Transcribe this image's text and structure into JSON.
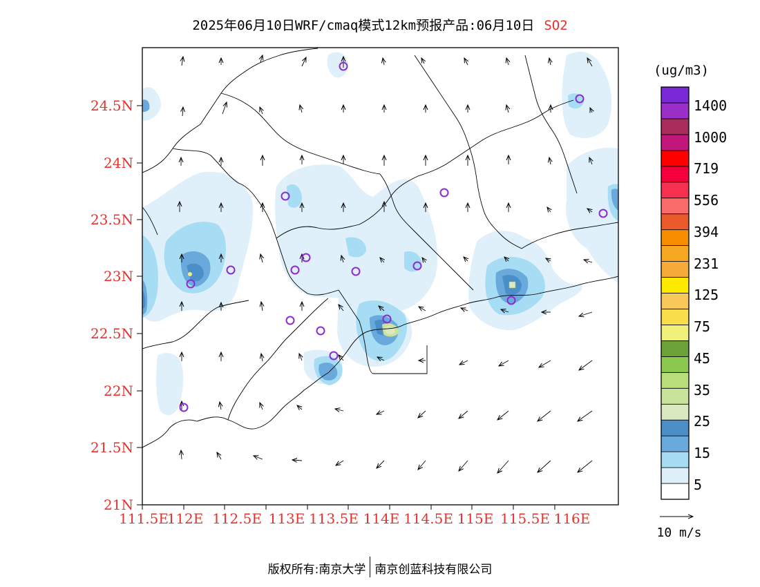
{
  "title": {
    "main": "2025年06月10日WRF/cmaq模式12km预报产品:06月10日",
    "pollutant": "SO2",
    "pollutant_color": "#e5322d"
  },
  "map": {
    "lat_ticks": [
      "24.5N",
      "24N",
      "23.5N",
      "23N",
      "22.5N",
      "22N",
      "21.5N",
      "21N"
    ],
    "lon_ticks": [
      "111.5E",
      "112E",
      "112.5E",
      "113E",
      "113.5E",
      "114E",
      "114.5E",
      "115E",
      "115.5E",
      "116E"
    ],
    "tick_color": "#e5322d"
  },
  "legend": {
    "unit": "(ug/m3)",
    "labels": [
      "1400",
      "1000",
      "719",
      "556",
      "394",
      "231",
      "125",
      "75",
      "45",
      "35",
      "25",
      "15",
      "5"
    ],
    "colors_bottom_to_top": [
      "#ffffff",
      "#dff0fa",
      "#a6dcf4",
      "#6aa9dc",
      "#4b8ec8",
      "#dbe9c0",
      "#c9e39a",
      "#b9dd7a",
      "#8cc84f",
      "#6da23a",
      "#f0f07a",
      "#f7de4a",
      "#f8c85a",
      "#ffea00",
      "#f5aa3a",
      "#f7a822",
      "#f78d00",
      "#eb5a2a",
      "#fa6b6b",
      "#f7304f",
      "#f5003c",
      "#ff0000",
      "#c2187d",
      "#a92d5c",
      "#9b30c8",
      "#7b28d8"
    ]
  },
  "wind_scale": {
    "label": "10 m/s"
  },
  "footer": {
    "left": "版权所有:南京大学",
    "right": "南京创蓝科技有限公司"
  }
}
